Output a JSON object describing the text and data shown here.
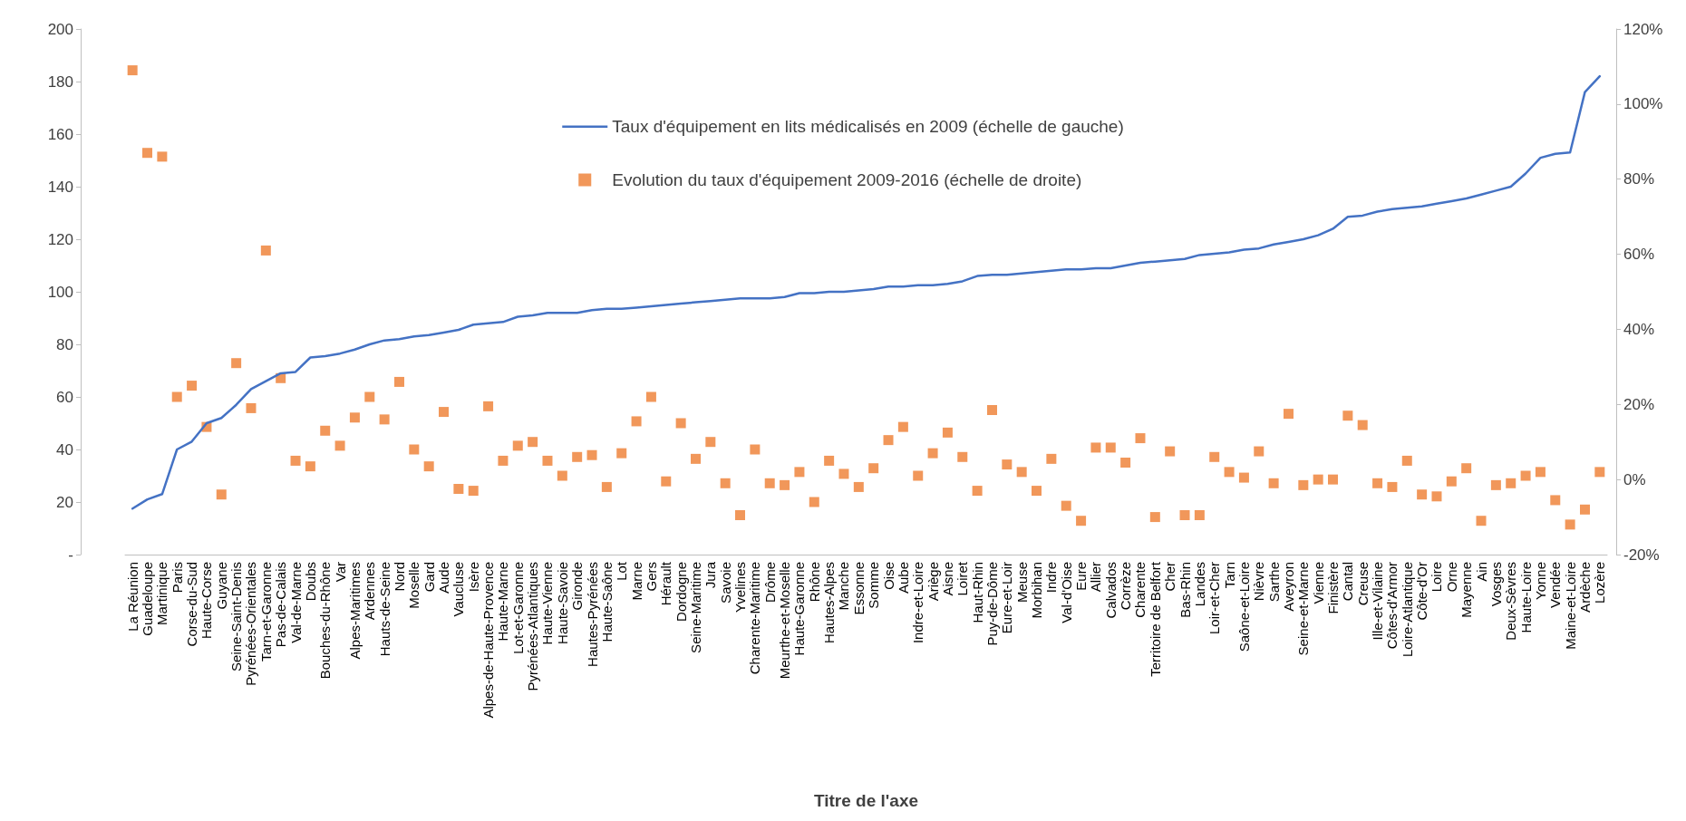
{
  "chart_data": {
    "type": "line",
    "xlabel": "Titre de l'axe",
    "categories": [
      "La Réunion",
      "Guadeloupe",
      "Martinique",
      "Paris",
      "Corse-du-Sud",
      "Haute-Corse",
      "Guyane",
      "Seine-Saint-Denis",
      "Pyrénées-Orientales",
      "Tarn-et-Garonne",
      "Pas-de-Calais",
      "Val-de-Marne",
      "Doubs",
      "Bouches-du-Rhône",
      "Var",
      "Alpes-Maritimes",
      "Ardennes",
      "Hauts-de-Seine",
      "Nord",
      "Moselle",
      "Gard",
      "Aude",
      "Vaucluse",
      "Isère",
      "Alpes-de-Haute-Provence",
      "Haute-Marne",
      "Lot-et-Garonne",
      "Pyrénées-Atlantiques",
      "Haute-Vienne",
      "Haute-Savoie",
      "Gironde",
      "Hautes-Pyrénées",
      "Haute-Saône",
      "Lot",
      "Marne",
      "Gers",
      "Hérault",
      "Dordogne",
      "Seine-Maritime",
      "Jura",
      "Savoie",
      "Yvelines",
      "Charente-Maritime",
      "Drôme",
      "Meurthe-et-Moselle",
      "Haute-Garonne",
      "Rhône",
      "Hautes-Alpes",
      "Manche",
      "Essonne",
      "Somme",
      "Oise",
      "Aube",
      "Indre-et-Loire",
      "Ariège",
      "Aisne",
      "Loiret",
      "Haut-Rhin",
      "Puy-de-Dôme",
      "Eure-et-Loir",
      "Meuse",
      "Morbihan",
      "Indre",
      "Val-d'Oise",
      "Eure",
      "Allier",
      "Calvados",
      "Corrèze",
      "Charente",
      "Territoire de Belfort",
      "Cher",
      "Bas-Rhin",
      "Landes",
      "Loir-et-Cher",
      "Tarn",
      "Saône-et-Loire",
      "Nièvre",
      "Sarthe",
      "Aveyron",
      "Seine-et-Marne",
      "Vienne",
      "Finistère",
      "Cantal",
      "Creuse",
      "Ille-et-Vilaine",
      "Côtes-d'Armor",
      "Loire-Atlantique",
      "Côte-d'Or",
      "Loire",
      "Orne",
      "Mayenne",
      "Ain",
      "Vosges",
      "Deux-Sèvres",
      "Haute-Loire",
      "Yonne",
      "Vendée",
      "Maine-et-Loire",
      "Ardèche",
      "Lozère"
    ],
    "series": [
      {
        "name": "Taux d'équipement en lits médicalisés en 2009 (échelle de gauche)",
        "color": "#4472c4",
        "values": [
          17.5,
          21,
          23,
          40,
          43,
          50,
          52,
          57,
          63,
          66,
          69,
          69.5,
          75,
          75.5,
          76.5,
          78,
          80,
          81.5,
          82,
          83,
          83.5,
          84.5,
          85.5,
          87.5,
          88,
          88.5,
          90.5,
          91,
          92,
          92,
          92,
          93,
          93.5,
          93.5,
          94,
          94.5,
          95,
          95.5,
          96,
          96.5,
          97,
          97.5,
          97.5,
          97.5,
          98,
          99.5,
          99.5,
          100,
          100,
          100.5,
          101,
          102,
          102,
          102.5,
          102.5,
          103,
          104,
          106,
          106.5,
          106.5,
          107,
          107.5,
          108,
          108.5,
          108.5,
          109,
          109,
          110,
          111,
          111.5,
          112,
          112.5,
          114,
          114.5,
          115,
          116,
          116.5,
          118,
          119,
          120,
          121.5,
          124,
          128.5,
          129,
          130.5,
          131.5,
          132,
          132.5,
          133.5,
          134.5,
          135.5,
          137,
          138.5,
          140,
          145,
          151,
          152.5,
          153,
          176,
          182
        ]
      },
      {
        "name": "Evolution du taux d'équipement 2009-2016 (échelle de droite)",
        "type": "scatter",
        "axis": "y2",
        "marker": "square",
        "color": "#ed7d31",
        "values": [
          109,
          87,
          86,
          22,
          25,
          14,
          -4,
          31,
          19,
          61,
          27,
          5,
          3.5,
          13,
          9,
          16.5,
          22,
          16,
          26,
          8,
          3.5,
          18,
          -2.5,
          -3,
          19.5,
          5,
          9,
          10,
          5,
          1,
          6,
          6.5,
          -2,
          7,
          15.5,
          22,
          -0.5,
          15,
          5.5,
          10,
          -1,
          -9.5,
          8,
          -1,
          -1.5,
          2,
          -6,
          5,
          1.5,
          -2,
          3,
          10.5,
          14,
          1,
          7,
          12.5,
          6,
          -3,
          18.5,
          4,
          2,
          -3,
          5.5,
          -7,
          -11,
          8.5,
          8.5,
          4.5,
          11,
          -10,
          7.5,
          -9.5,
          -9.5,
          6,
          2,
          0.5,
          7.5,
          -1,
          17.5,
          -1.5,
          0,
          0,
          17,
          14.5,
          -1,
          -2,
          5,
          -4,
          -4.5,
          -0.5,
          3,
          -11,
          -1.5,
          -1,
          1,
          2,
          -5.5,
          -12,
          -8,
          2
        ]
      }
    ],
    "ylim": [
      0,
      200
    ],
    "yticks": [
      {
        "value": 0,
        "label": "-"
      },
      20,
      40,
      60,
      80,
      100,
      120,
      140,
      160,
      180,
      200
    ],
    "y2lim": [
      -20,
      120
    ],
    "y2ticks": [
      {
        "value": -20,
        "label": "-20%"
      },
      {
        "value": 0,
        "label": "0%"
      },
      {
        "value": 20,
        "label": "20%"
      },
      {
        "value": 40,
        "label": "40%"
      },
      {
        "value": 60,
        "label": "60%"
      },
      {
        "value": 80,
        "label": "80%"
      },
      {
        "value": 100,
        "label": "100%"
      },
      {
        "value": 120,
        "label": "120%"
      }
    ],
    "grid": false,
    "legend": "top"
  }
}
